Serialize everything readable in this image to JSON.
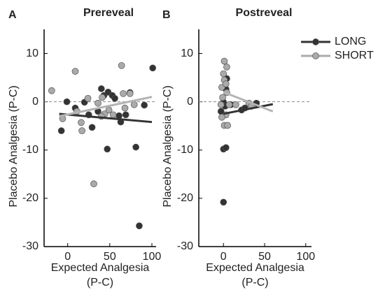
{
  "chart_data": [
    {
      "type": "scatter",
      "panel": "A",
      "title": "Prereveal",
      "x_label": [
        "Expected Analgesia",
        "(P-C)"
      ],
      "y_label": "Placebo Analgesia (P-C)",
      "xlim": [
        -28,
        105
      ],
      "ylim": [
        -30,
        15
      ],
      "xticks": [
        0,
        50,
        100
      ],
      "yticks": [
        10,
        0,
        -10,
        -20,
        -30
      ],
      "reference_line": 0,
      "series": [
        {
          "color": "#333333",
          "x": [
            -1,
            -7.5,
            9,
            25,
            29,
            40,
            43,
            48,
            47,
            53,
            56,
            61,
            63,
            69,
            74,
            81,
            91,
            101,
            85,
            36,
            20
          ],
          "values": [
            0,
            -6,
            -1.3,
            -2.7,
            -5.3,
            2.7,
            1.3,
            2,
            -9.8,
            1.3,
            0.7,
            -2.9,
            -4.2,
            -2.7,
            1.9,
            -9.4,
            -0.7,
            7,
            -25.7,
            -2,
            -0.1
          ],
          "fit": {
            "x": [
              -10,
              100
            ],
            "values": [
              -2.5,
              -4.2
            ]
          }
        },
        {
          "color": "#aaaaaa",
          "x": [
            -19,
            9,
            -6,
            17,
            24,
            36,
            31,
            41,
            44,
            54,
            64,
            66,
            74,
            79,
            68,
            49,
            40,
            16,
            11
          ],
          "values": [
            2.3,
            6.3,
            -3.5,
            -6,
            0.7,
            -0.3,
            -17,
            0.9,
            -2.5,
            -2.7,
            7.5,
            1.7,
            1.7,
            -0.6,
            -1.3,
            -1.7,
            -3,
            -4.3,
            -2
          ],
          "fit": {
            "x": [
              -10,
              100
            ],
            "values": [
              -3,
              1
            ]
          }
        }
      ]
    },
    {
      "type": "scatter",
      "panel": "B",
      "title": "Postreveal",
      "x_label": [
        "Expected Analgesia",
        "(P-C)"
      ],
      "y_label": "Placebo Analgesia (P-C)",
      "xlim": [
        -30,
        107
      ],
      "ylim": [
        -30,
        15
      ],
      "xticks": [
        0,
        50,
        100
      ],
      "yticks": [
        10,
        0,
        -10,
        -20,
        -30
      ],
      "reference_line": 0,
      "legend": "upper right",
      "series": [
        {
          "name": "LONG",
          "color": "#333333",
          "x": [
            0,
            0,
            3,
            0,
            4,
            2,
            9,
            22,
            26,
            40,
            -3,
            3
          ],
          "values": [
            -0.1,
            -9.8,
            -9.5,
            -20.8,
            4.8,
            -0.9,
            -0.6,
            -1.7,
            -1.3,
            -0.3,
            -2,
            2.6
          ],
          "fit": {
            "x": [
              0,
              60
            ],
            "values": [
              -2.5,
              -0.5
            ]
          }
        },
        {
          "name": "SHORT",
          "color": "#aaaaaa",
          "x": [
            1,
            0,
            1,
            -2,
            4,
            -1,
            3,
            -2,
            1,
            5,
            -3,
            7,
            15,
            31,
            34,
            4,
            3
          ],
          "values": [
            8.4,
            5.8,
            4.5,
            3,
            1.9,
            0.9,
            -2.7,
            -3.2,
            -4.9,
            -4.9,
            -0.6,
            -0.6,
            -0.6,
            -0.3,
            -0.9,
            7.2,
            3.7
          ],
          "fit": {
            "x": [
              0,
              60
            ],
            "values": [
              2,
              -2
            ]
          }
        }
      ]
    }
  ]
}
